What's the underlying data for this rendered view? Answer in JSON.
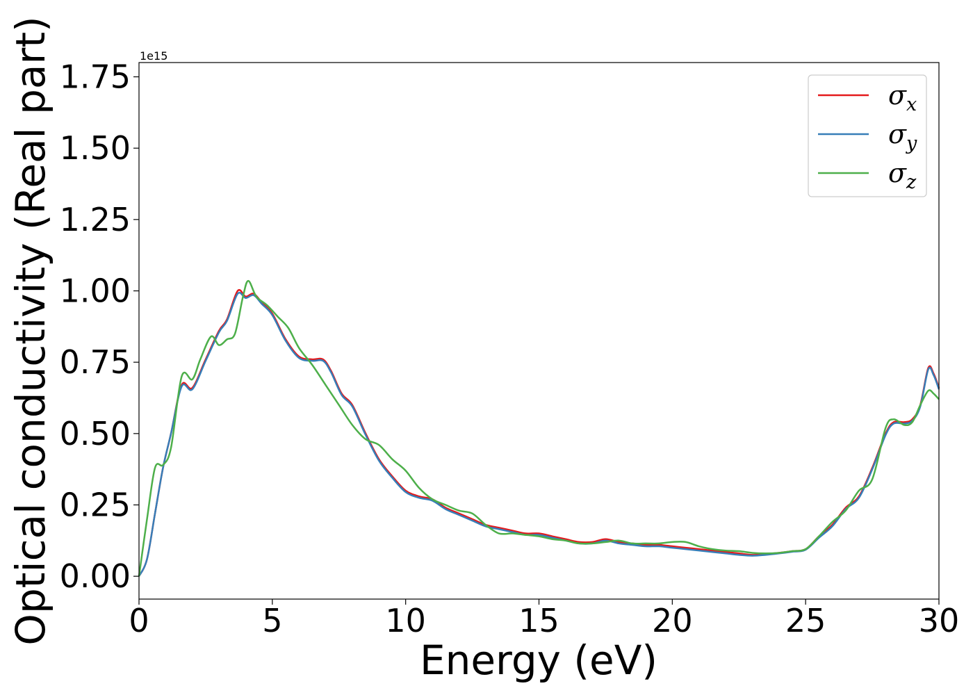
{
  "chart_data": {
    "type": "line",
    "xlabel": "Energy (eV)",
    "ylabel": "Optical conductivity (Real part)",
    "offset_text": "1e15",
    "xlim": [
      0,
      30
    ],
    "ylim": [
      -0.08,
      1.8
    ],
    "x_ticks": [
      0,
      5,
      10,
      15,
      20,
      25,
      30
    ],
    "x_tick_labels": [
      "0",
      "5",
      "10",
      "15",
      "20",
      "25",
      "30"
    ],
    "y_ticks": [
      0.0,
      0.25,
      0.5,
      0.75,
      1.0,
      1.25,
      1.5,
      1.75
    ],
    "y_tick_labels": [
      "0.00",
      "0.25",
      "0.50",
      "0.75",
      "1.00",
      "1.25",
      "1.50",
      "1.75"
    ],
    "grid": false,
    "legend_position": "top-right",
    "series": [
      {
        "name": "σ",
        "subscript": "x",
        "color": "#e41a1c",
        "x": [
          0,
          0.3,
          0.6,
          0.9,
          1.2,
          1.6,
          2.0,
          2.5,
          3.0,
          3.3,
          3.7,
          4.0,
          4.3,
          4.6,
          5.0,
          5.5,
          6.0,
          6.5,
          6.9,
          7.2,
          7.6,
          8.0,
          8.5,
          9.0,
          9.5,
          10.0,
          10.5,
          11.0,
          11.5,
          12.0,
          12.5,
          13.0,
          13.5,
          14.0,
          14.5,
          15.0,
          15.5,
          16.0,
          16.5,
          17.0,
          17.5,
          18.0,
          18.5,
          19.0,
          19.5,
          20.0,
          20.5,
          21.0,
          21.5,
          22.0,
          22.5,
          23.0,
          23.5,
          24.0,
          24.5,
          25.0,
          25.5,
          26.0,
          26.5,
          27.0,
          27.5,
          28.0,
          28.3,
          28.7,
          29.0,
          29.3,
          29.6,
          29.8,
          30.0
        ],
        "y": [
          0.0,
          0.06,
          0.22,
          0.38,
          0.5,
          0.67,
          0.66,
          0.76,
          0.86,
          0.9,
          1.0,
          0.98,
          0.99,
          0.96,
          0.92,
          0.83,
          0.77,
          0.76,
          0.76,
          0.72,
          0.64,
          0.6,
          0.5,
          0.41,
          0.35,
          0.3,
          0.28,
          0.27,
          0.24,
          0.22,
          0.2,
          0.18,
          0.17,
          0.16,
          0.15,
          0.15,
          0.14,
          0.13,
          0.12,
          0.12,
          0.13,
          0.12,
          0.115,
          0.11,
          0.11,
          0.105,
          0.1,
          0.095,
          0.09,
          0.085,
          0.08,
          0.075,
          0.078,
          0.082,
          0.088,
          0.095,
          0.14,
          0.18,
          0.24,
          0.28,
          0.38,
          0.5,
          0.54,
          0.54,
          0.55,
          0.6,
          0.73,
          0.71,
          0.66
        ]
      },
      {
        "name": "σ",
        "subscript": "y",
        "color": "#377eb8",
        "x": [
          0,
          0.3,
          0.6,
          0.9,
          1.2,
          1.6,
          2.0,
          2.5,
          3.0,
          3.3,
          3.7,
          4.0,
          4.3,
          4.6,
          5.0,
          5.5,
          6.0,
          6.5,
          6.9,
          7.2,
          7.6,
          8.0,
          8.5,
          9.0,
          9.5,
          10.0,
          10.5,
          11.0,
          11.5,
          12.0,
          12.5,
          13.0,
          13.5,
          14.0,
          14.5,
          15.0,
          15.5,
          16.0,
          16.5,
          17.0,
          17.5,
          18.0,
          18.5,
          19.0,
          19.5,
          20.0,
          20.5,
          21.0,
          21.5,
          22.0,
          22.5,
          23.0,
          23.5,
          24.0,
          24.5,
          25.0,
          25.5,
          26.0,
          26.5,
          27.0,
          27.5,
          28.0,
          28.3,
          28.7,
          29.0,
          29.3,
          29.6,
          29.8,
          30.0
        ],
        "y": [
          0.0,
          0.06,
          0.22,
          0.38,
          0.5,
          0.665,
          0.655,
          0.755,
          0.855,
          0.895,
          0.99,
          0.975,
          0.985,
          0.955,
          0.915,
          0.825,
          0.765,
          0.755,
          0.755,
          0.715,
          0.635,
          0.595,
          0.495,
          0.405,
          0.345,
          0.295,
          0.275,
          0.265,
          0.235,
          0.215,
          0.195,
          0.175,
          0.165,
          0.155,
          0.145,
          0.145,
          0.135,
          0.125,
          0.115,
          0.115,
          0.125,
          0.115,
          0.11,
          0.105,
          0.105,
          0.1,
          0.095,
          0.09,
          0.085,
          0.08,
          0.075,
          0.072,
          0.075,
          0.08,
          0.086,
          0.093,
          0.135,
          0.175,
          0.235,
          0.275,
          0.375,
          0.495,
          0.535,
          0.535,
          0.545,
          0.595,
          0.725,
          0.705,
          0.655
        ]
      },
      {
        "name": "σ",
        "subscript": "z",
        "color": "#4daf4a",
        "x": [
          0,
          0.3,
          0.6,
          0.9,
          1.2,
          1.6,
          2.0,
          2.3,
          2.7,
          3.0,
          3.3,
          3.6,
          3.9,
          4.1,
          4.4,
          4.8,
          5.2,
          5.6,
          6.0,
          6.5,
          7.0,
          7.5,
          8.0,
          8.5,
          9.0,
          9.5,
          10.0,
          10.5,
          11.0,
          11.5,
          12.0,
          12.5,
          13.0,
          13.5,
          14.0,
          14.5,
          15.0,
          15.5,
          16.0,
          16.5,
          17.0,
          17.5,
          18.0,
          18.5,
          19.0,
          19.5,
          20.0,
          20.5,
          21.0,
          21.5,
          22.0,
          22.5,
          23.0,
          23.5,
          24.0,
          24.5,
          25.0,
          25.5,
          26.0,
          26.5,
          27.0,
          27.5,
          28.0,
          28.3,
          28.7,
          29.0,
          29.3,
          29.6,
          29.8,
          30.0
        ],
        "y": [
          0.0,
          0.2,
          0.38,
          0.39,
          0.45,
          0.7,
          0.69,
          0.76,
          0.84,
          0.81,
          0.83,
          0.85,
          0.98,
          1.035,
          0.98,
          0.95,
          0.91,
          0.87,
          0.8,
          0.74,
          0.67,
          0.6,
          0.53,
          0.48,
          0.46,
          0.41,
          0.37,
          0.31,
          0.27,
          0.25,
          0.23,
          0.22,
          0.18,
          0.15,
          0.15,
          0.145,
          0.14,
          0.13,
          0.125,
          0.115,
          0.115,
          0.12,
          0.125,
          0.115,
          0.115,
          0.115,
          0.12,
          0.12,
          0.105,
          0.095,
          0.09,
          0.088,
          0.082,
          0.08,
          0.082,
          0.088,
          0.095,
          0.14,
          0.19,
          0.23,
          0.3,
          0.34,
          0.52,
          0.55,
          0.53,
          0.54,
          0.6,
          0.65,
          0.64,
          0.62
        ]
      }
    ]
  }
}
